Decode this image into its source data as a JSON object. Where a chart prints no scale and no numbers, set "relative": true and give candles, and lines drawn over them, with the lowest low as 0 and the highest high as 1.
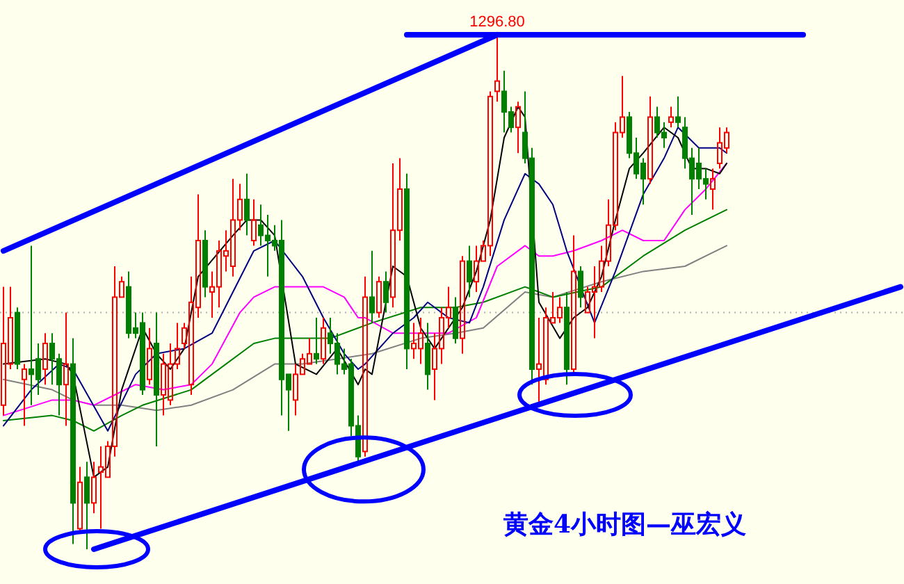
{
  "chart_data": {
    "type": "candlestick",
    "relative": true,
    "title": "黄金4小时图—巫宏义",
    "annotations": [
      {
        "text": "1296.80",
        "y": 1
      }
    ],
    "categories": [
      null,
      null,
      null,
      null,
      null,
      null,
      null,
      null,
      null,
      null,
      null,
      null,
      null,
      null,
      null,
      null,
      null,
      null,
      null,
      null,
      null,
      null,
      null,
      null,
      null,
      null,
      null,
      null,
      null,
      null,
      null,
      null,
      null,
      null,
      null,
      null,
      null,
      null,
      null,
      null,
      null,
      null,
      null,
      null,
      null,
      null,
      null,
      null,
      null,
      null,
      null,
      null,
      null,
      null,
      null,
      null,
      null,
      null,
      null,
      null,
      null,
      null,
      null,
      null,
      null,
      null,
      null,
      null,
      null,
      null,
      null,
      null,
      null,
      null,
      null,
      null,
      null,
      null,
      null,
      null,
      null,
      null,
      null,
      null,
      null,
      null,
      null,
      null,
      null,
      null,
      null,
      null,
      null,
      null,
      null,
      null,
      null,
      null,
      null,
      null,
      null,
      null,
      null,
      null,
      null,
      null,
      null,
      null,
      null,
      null,
      null,
      null,
      null,
      null,
      null,
      null,
      null,
      null,
      null,
      null,
      null,
      null,
      null,
      null,
      null,
      null,
      null,
      null,
      null,
      null
    ],
    "ohlc": [
      [
        0.28,
        0.51,
        0.26,
        0.4
      ],
      [
        0.36,
        0.51,
        0.35,
        0.45
      ],
      [
        0.46,
        0.47,
        0.35,
        0.36
      ],
      [
        0.33,
        0.36,
        0.24,
        0.35
      ],
      [
        0.35,
        0.59,
        0.28,
        0.34
      ],
      [
        0.37,
        0.4,
        0.3,
        0.33
      ],
      [
        0.35,
        0.42,
        0.32,
        0.4
      ],
      [
        0.4,
        0.42,
        0.32,
        0.37
      ],
      [
        0.37,
        0.38,
        0.26,
        0.32
      ],
      [
        0.32,
        0.46,
        0.24,
        0.36
      ],
      [
        0.36,
        0.41,
        0.01,
        0.09
      ],
      [
        0.04,
        0.16,
        0.03,
        0.13
      ],
      [
        0.14,
        0.17,
        0,
        0.09
      ],
      [
        0.09,
        0.17,
        0.07,
        0.14
      ],
      [
        0.15,
        0.2,
        0.04,
        0.16
      ],
      [
        0.14,
        0.21,
        0.14,
        0.2
      ],
      [
        0.2,
        0.55,
        0.18,
        0.49
      ],
      [
        0.49,
        0.53,
        0.49,
        0.52
      ],
      [
        0.51,
        0.54,
        0.41,
        0.42
      ],
      [
        0.43,
        0.46,
        0.41,
        0.42
      ],
      [
        0.44,
        0.46,
        0.3,
        0.31
      ],
      [
        0.33,
        0.43,
        0.32,
        0.39
      ],
      [
        0.4,
        0.46,
        0.2,
        0.3
      ],
      [
        0.3,
        0.38,
        0.26,
        0.36
      ],
      [
        0.29,
        0.4,
        0.28,
        0.36
      ],
      [
        0.36,
        0.44,
        0.35,
        0.39
      ],
      [
        0.4,
        0.44,
        0.39,
        0.43
      ],
      [
        0.32,
        0.53,
        0.3,
        0.48
      ],
      [
        0.47,
        0.69,
        0.45,
        0.6
      ],
      [
        0.6,
        0.62,
        0.49,
        0.51
      ],
      [
        0.5,
        0.54,
        0.45,
        0.51
      ],
      [
        0.51,
        0.6,
        0.47,
        0.58
      ],
      [
        0.57,
        0.62,
        0.54,
        0.58
      ],
      [
        0.55,
        0.72,
        0.53,
        0.64
      ],
      [
        0.64,
        0.71,
        0.62,
        0.68
      ],
      [
        0.68,
        0.73,
        0.61,
        0.64
      ],
      [
        0.6,
        0.68,
        0.59,
        0.64
      ],
      [
        0.63,
        0.67,
        0.59,
        0.61
      ],
      [
        0.61,
        0.65,
        0.53,
        0.6
      ],
      [
        0.6,
        0.63,
        0.58,
        0.59
      ],
      [
        0.6,
        0.64,
        0.26,
        0.33
      ],
      [
        0.34,
        0.34,
        0.23,
        0.31
      ],
      [
        0.29,
        0.36,
        0.26,
        0.34
      ],
      [
        0.34,
        0.38,
        0.34,
        0.37
      ],
      [
        0.36,
        0.41,
        0.36,
        0.38
      ],
      [
        0.38,
        0.45,
        0.36,
        0.37
      ],
      [
        0.37,
        0.45,
        0.36,
        0.43
      ],
      [
        0.42,
        0.45,
        0.38,
        0.4
      ],
      [
        0.4,
        0.42,
        0.34,
        0.36
      ],
      [
        0.36,
        0.39,
        0.34,
        0.35
      ],
      [
        0.36,
        0.37,
        0.22,
        0.24
      ],
      [
        0.24,
        0.26,
        0.17,
        0.18
      ],
      [
        0.19,
        0.53,
        0.18,
        0.49
      ],
      [
        0.49,
        0.58,
        0.44,
        0.46
      ],
      [
        0.46,
        0.53,
        0.45,
        0.52
      ],
      [
        0.52,
        0.54,
        0.46,
        0.48
      ],
      [
        0.49,
        0.75,
        0.47,
        0.62
      ],
      [
        0.62,
        0.76,
        0.6,
        0.7
      ],
      [
        0.7,
        0.73,
        0.35,
        0.39
      ],
      [
        0.39,
        0.44,
        0.37,
        0.4
      ],
      [
        0.39,
        0.45,
        0.36,
        0.42
      ],
      [
        0.4,
        0.44,
        0.31,
        0.34
      ],
      [
        0.35,
        0.42,
        0.29,
        0.39
      ],
      [
        0.39,
        0.47,
        0.36,
        0.45
      ],
      [
        0.45,
        0.51,
        0.43,
        0.47
      ],
      [
        0.47,
        0.49,
        0.4,
        0.41
      ],
      [
        0.41,
        0.57,
        0.38,
        0.56
      ],
      [
        0.56,
        0.59,
        0.49,
        0.52
      ],
      [
        0.52,
        0.59,
        0.5,
        0.56
      ],
      [
        0.56,
        0.6,
        0.56,
        0.59
      ],
      [
        0.59,
        0.89,
        0.57,
        0.88
      ],
      [
        0.89,
        1,
        0.87,
        0.91
      ],
      [
        0.89,
        0.93,
        0.81,
        0.85
      ],
      [
        0.85,
        0.86,
        0.81,
        0.82
      ],
      [
        0.82,
        0.87,
        0.77,
        0.86
      ],
      [
        0.81,
        0.89,
        0.75,
        0.76
      ],
      [
        0.76,
        0.78,
        0.32,
        0.35
      ],
      [
        0.35,
        0.45,
        0.28,
        0.36
      ],
      [
        0.33,
        0.47,
        0.32,
        0.45
      ],
      [
        0.44,
        0.5,
        0.44,
        0.45
      ],
      [
        0.45,
        0.49,
        0.44,
        0.47
      ],
      [
        0.47,
        0.5,
        0.32,
        0.35
      ],
      [
        0.35,
        0.61,
        0.34,
        0.54
      ],
      [
        0.54,
        0.55,
        0.47,
        0.49
      ],
      [
        0.46,
        0.51,
        0.46,
        0.5
      ],
      [
        0.5,
        0.55,
        0.41,
        0.51
      ],
      [
        0.51,
        0.59,
        0.5,
        0.56
      ],
      [
        0.56,
        0.68,
        0.55,
        0.63
      ],
      [
        0.63,
        0.83,
        0.62,
        0.81
      ],
      [
        0.81,
        0.92,
        0.8,
        0.84
      ],
      [
        0.84,
        0.85,
        0.76,
        0.77
      ],
      [
        0.77,
        0.8,
        0.72,
        0.73
      ],
      [
        0.75,
        0.76,
        0.67,
        0.72
      ],
      [
        0.72,
        0.88,
        0.71,
        0.84
      ],
      [
        0.84,
        0.86,
        0.8,
        0.81
      ],
      [
        0.81,
        0.83,
        0.78,
        0.8
      ],
      [
        0.83,
        0.86,
        0.82,
        0.84
      ],
      [
        0.84,
        0.88,
        0.82,
        0.83
      ],
      [
        0.82,
        0.84,
        0.74,
        0.76
      ],
      [
        0.76,
        0.78,
        0.65,
        0.72
      ],
      [
        0.75,
        0.78,
        0.7,
        0.72
      ],
      [
        0.72,
        0.74,
        0.68,
        0.71
      ],
      [
        0.7,
        0.74,
        0.66,
        0.72
      ],
      [
        0.75,
        0.82,
        0.74,
        0.79
      ],
      [
        0.78,
        0.82,
        0.77,
        0.81
      ],
      null,
      null,
      null,
      null,
      null,
      null,
      null,
      null,
      null,
      null,
      null,
      null,
      null,
      null,
      null,
      null,
      null,
      null,
      null,
      null,
      null,
      null,
      null,
      null,
      null
    ],
    "series": [
      {
        "type": "line",
        "color": "#808080",
        "values": [
          0.33,
          null,
          null,
          null,
          null,
          null,
          null,
          0.31,
          null,
          null,
          0.29,
          null,
          null,
          0.28,
          null,
          null,
          null,
          0.28,
          null,
          null,
          null,
          null,
          0.27,
          null,
          null,
          null,
          null,
          0.28,
          null,
          null,
          null,
          null,
          null,
          0.31,
          null,
          null,
          null,
          null,
          null,
          0.36,
          null,
          null,
          null,
          0.36,
          null,
          null,
          null,
          null,
          0.37,
          null,
          null,
          null,
          null,
          0.38,
          null,
          null,
          null,
          null,
          null,
          null,
          0.41,
          null,
          null,
          null,
          null,
          0.42,
          null,
          null,
          null,
          0.43,
          null,
          null,
          null,
          null,
          null,
          0.5,
          null,
          null,
          null,
          0.49,
          null,
          null,
          null,
          null,
          null,
          null,
          0.52,
          null,
          null,
          null,
          null,
          null,
          0.54,
          null,
          null,
          null,
          null,
          null,
          0.55,
          null,
          null,
          null,
          null,
          null,
          0.59,
          null,
          null,
          null,
          null,
          null,
          null,
          null,
          null,
          null,
          null,
          null,
          null,
          null,
          null,
          null,
          null,
          null,
          null,
          null,
          null,
          null,
          null,
          null,
          null,
          null
        ]
      },
      {
        "type": "line",
        "color": "#008000",
        "values": [
          0.25,
          null,
          null,
          null,
          null,
          null,
          null,
          0.26,
          null,
          null,
          0.25,
          null,
          null,
          0.23,
          null,
          null,
          null,
          0.26,
          null,
          null,
          0.28,
          null,
          null,
          null,
          null,
          null,
          null,
          0.31,
          null,
          null,
          0.34,
          null,
          null,
          null,
          null,
          null,
          0.4,
          null,
          null,
          0.41,
          null,
          null,
          null,
          0.41,
          null,
          null,
          null,
          0.41,
          null,
          null,
          null,
          null,
          null,
          0.44,
          null,
          null,
          null,
          null,
          null,
          null,
          0.47,
          null,
          null,
          null,
          null,
          0.47,
          null,
          null,
          null,
          0.48,
          null,
          null,
          null,
          null,
          null,
          0.51,
          null,
          null,
          null,
          0.49,
          null,
          null,
          null,
          null,
          null,
          null,
          0.51,
          null,
          null,
          null,
          null,
          null,
          0.57,
          null,
          null,
          null,
          null,
          null,
          0.62,
          null,
          null,
          null,
          null,
          null,
          0.66,
          null,
          null,
          null,
          null,
          null,
          null,
          null,
          null,
          null,
          null,
          null,
          null,
          null,
          null,
          null,
          null,
          null,
          null,
          null,
          null,
          null,
          null,
          null,
          null,
          null
        ]
      },
      {
        "type": "line",
        "color": "#ff00ff",
        "values": [
          0.26,
          null,
          null,
          null,
          null,
          null,
          null,
          0.29,
          null,
          null,
          0.29,
          null,
          null,
          0.28,
          null,
          null,
          0.3,
          null,
          null,
          0.32,
          null,
          null,
          null,
          0.31,
          null,
          null,
          null,
          0.32,
          null,
          null,
          0.36,
          null,
          null,
          null,
          0.46,
          null,
          0.49,
          null,
          null,
          0.51,
          null,
          null,
          null,
          0.51,
          null,
          null,
          0.51,
          null,
          null,
          0.49,
          null,
          0.45,
          0.45,
          null,
          null,
          null,
          0.42,
          null,
          null,
          0.42,
          null,
          null,
          null,
          null,
          0.42,
          null,
          null,
          null,
          0.45,
          null,
          null,
          0.55,
          null,
          null,
          null,
          0.59,
          null,
          0.57,
          null,
          0.57,
          null,
          null,
          0.58,
          null,
          null,
          null,
          0.6,
          null,
          null,
          0.62,
          null,
          null,
          0.6,
          null,
          null,
          0.6,
          null,
          null,
          0.66,
          null,
          null,
          0.7,
          null,
          null,
          0.75,
          null,
          null,
          null,
          null,
          null,
          null,
          null,
          null,
          null,
          null,
          null,
          null,
          null,
          null,
          null,
          null,
          null,
          null,
          null,
          null,
          null,
          null,
          null,
          null,
          null
        ]
      },
      {
        "type": "line",
        "color": "#000080",
        "values": [
          0.24,
          null,
          null,
          null,
          0.31,
          null,
          null,
          null,
          0.36,
          null,
          0.35,
          null,
          null,
          null,
          null,
          0.23,
          null,
          null,
          null,
          0.34,
          null,
          null,
          0.38,
          null,
          null,
          null,
          0.39,
          null,
          null,
          null,
          0.42,
          null,
          null,
          0.5,
          null,
          null,
          0.58,
          null,
          null,
          0.6,
          null,
          null,
          null,
          0.53,
          null,
          null,
          0.45,
          null,
          null,
          0.38,
          null,
          0.35,
          0.36,
          null,
          null,
          null,
          0.42,
          null,
          null,
          0.45,
          null,
          0.48,
          null,
          null,
          0.45,
          null,
          null,
          0.44,
          null,
          0.51,
          null,
          null,
          0.64,
          null,
          null,
          0.73,
          null,
          0.71,
          null,
          0.67,
          null,
          0.58,
          null,
          null,
          null,
          0.44,
          null,
          null,
          0.54,
          null,
          null,
          null,
          0.69,
          null,
          null,
          0.76,
          null,
          0.82,
          null,
          null,
          0.78,
          null,
          null,
          0.78,
          0.77,
          null,
          null,
          null,
          null,
          null,
          null,
          null,
          null,
          null,
          null,
          null,
          null,
          null,
          null,
          null,
          null,
          null,
          null,
          null,
          null,
          null,
          null,
          null,
          null,
          null
        ]
      },
      {
        "type": "line",
        "color": "#000000",
        "values": [
          0.36,
          null,
          null,
          null,
          null,
          null,
          0.37,
          null,
          null,
          0.36,
          0.34,
          null,
          null,
          0.14,
          null,
          0.16,
          null,
          0.31,
          null,
          null,
          0.43,
          null,
          0.38,
          null,
          0.35,
          null,
          0.39,
          null,
          0.53,
          null,
          null,
          null,
          null,
          0.61,
          null,
          0.64,
          null,
          0.64,
          null,
          0.61,
          null,
          null,
          0.36,
          null,
          null,
          0.34,
          null,
          null,
          0.39,
          null,
          null,
          0.32,
          0.35,
          0.34,
          null,
          null,
          0.55,
          null,
          0.53,
          null,
          0.43,
          null,
          0.39,
          null,
          0.43,
          null,
          0.47,
          null,
          0.54,
          null,
          0.64,
          null,
          0.8,
          null,
          0.86,
          0.84,
          null,
          0.48,
          null,
          null,
          0.41,
          null,
          0.45,
          null,
          0.47,
          null,
          0.53,
          null,
          0.64,
          null,
          0.74,
          null,
          0.77,
          null,
          null,
          0.82,
          null,
          0.8,
          null,
          0.74,
          null,
          0.74,
          null,
          0.73,
          0.75,
          null,
          null,
          null,
          null,
          null,
          null,
          null,
          null,
          null,
          null,
          null,
          null,
          null,
          null,
          null,
          null,
          null,
          null,
          null,
          null,
          null,
          null,
          null,
          null,
          null
        ]
      },
      {
        "type": "line",
        "color": "#0000ff",
        "values": [
          0.58,
          null,
          null,
          null,
          null,
          null,
          null,
          null,
          null,
          null,
          null,
          null,
          null,
          null,
          null,
          null,
          null,
          null,
          null,
          null,
          null,
          null,
          null,
          null,
          null,
          null,
          null,
          null,
          null,
          null,
          null,
          null,
          null,
          null,
          null,
          null,
          null,
          null,
          null,
          null,
          null,
          null,
          null,
          null,
          null,
          null,
          null,
          null,
          null,
          null,
          null,
          null,
          null,
          null,
          null,
          null,
          null,
          null,
          null,
          null,
          null,
          null,
          null,
          null,
          null,
          null,
          null,
          null,
          null,
          null,
          null,
          1,
          null,
          null,
          null,
          null,
          null,
          null,
          null,
          null,
          null,
          null,
          null,
          null,
          null,
          null,
          null,
          null,
          null,
          null,
          null,
          null,
          null,
          null,
          null,
          null,
          null,
          null,
          null,
          null,
          null,
          null,
          null,
          null,
          null,
          null,
          null,
          null,
          null,
          null,
          null,
          null,
          null,
          null,
          null,
          null,
          null,
          null,
          null,
          null,
          null,
          null,
          null,
          null,
          null,
          null,
          null,
          null,
          null,
          null
        ]
      },
      {
        "type": "line",
        "color": "#0000ff",
        "values": [
          null,
          null,
          null,
          null,
          null,
          null,
          null,
          null,
          null,
          null,
          null,
          null,
          null,
          0,
          null,
          null,
          null,
          null,
          null,
          null,
          null,
          null,
          null,
          null,
          null,
          null,
          null,
          null,
          null,
          null,
          null,
          null,
          null,
          null,
          null,
          null,
          null,
          null,
          null,
          null,
          null,
          null,
          null,
          null,
          null,
          null,
          null,
          null,
          null,
          null,
          null,
          null,
          null,
          null,
          null,
          null,
          null,
          null,
          null,
          null,
          null,
          null,
          null,
          null,
          null,
          null,
          null,
          null,
          null,
          null,
          null,
          null,
          null,
          null,
          null,
          null,
          null,
          null,
          null,
          null,
          null,
          null,
          null,
          null,
          null,
          null,
          null,
          null,
          null,
          null,
          null,
          null,
          null,
          null,
          null,
          null,
          null,
          null,
          null,
          null,
          null,
          null,
          null,
          null,
          null,
          null,
          null,
          null,
          null,
          null,
          null,
          null,
          null,
          null,
          null,
          null,
          null,
          null,
          null,
          null,
          null,
          null,
          null,
          null,
          null,
          null,
          null,
          null,
          null,
          0.51
        ]
      },
      {
        "type": "line",
        "color": "#0000ff",
        "values": [
          null,
          null,
          null,
          null,
          null,
          null,
          null,
          null,
          null,
          null,
          null,
          null,
          null,
          null,
          null,
          null,
          null,
          null,
          null,
          null,
          null,
          null,
          null,
          null,
          null,
          null,
          null,
          null,
          null,
          null,
          null,
          null,
          null,
          null,
          null,
          null,
          null,
          null,
          null,
          null,
          null,
          null,
          null,
          null,
          null,
          null,
          null,
          null,
          null,
          null,
          null,
          null,
          null,
          null,
          null,
          null,
          null,
          null,
          1,
          null,
          null,
          null,
          null,
          null,
          null,
          null,
          null,
          null,
          null,
          null,
          null,
          null,
          null,
          null,
          null,
          null,
          null,
          null,
          null,
          null,
          null,
          null,
          null,
          null,
          null,
          null,
          null,
          null,
          null,
          null,
          null,
          null,
          null,
          null,
          null,
          null,
          null,
          null,
          null,
          null,
          null,
          null,
          null,
          null,
          null,
          null,
          null,
          null,
          null,
          null,
          null,
          null,
          null,
          null,
          null,
          1,
          null,
          null,
          null,
          null,
          null,
          null,
          null,
          null,
          null,
          null,
          null,
          null,
          null,
          null
        ]
      }
    ],
    "ref_lines": [
      {
        "axis": "y",
        "value": 0.46,
        "color": "#b0b0b0",
        "line_style": "dotted"
      }
    ]
  }
}
